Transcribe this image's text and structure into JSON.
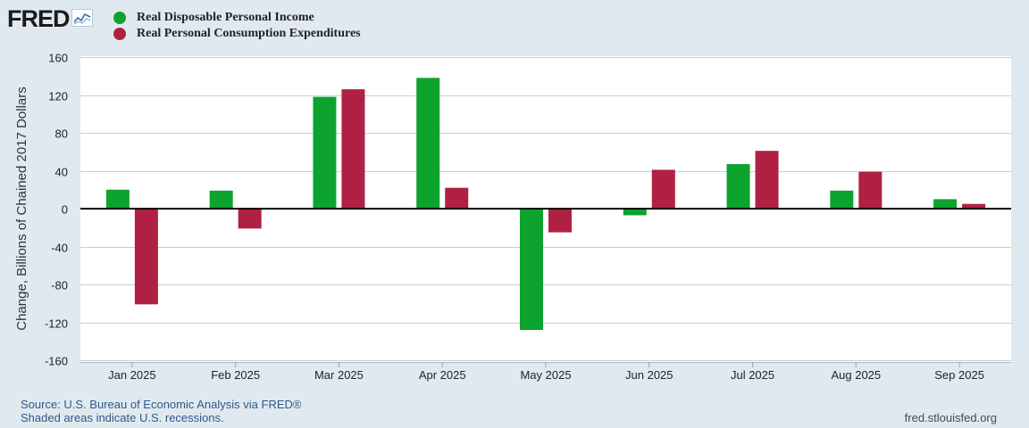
{
  "header": {
    "logo_text": "FRED",
    "logo_icon": "line-graph-icon"
  },
  "legend": {
    "items": [
      {
        "label": "Real Disposable Personal Income",
        "color": "#0ca32e"
      },
      {
        "label": "Real Personal Consumption Expenditures",
        "color": "#b02042"
      }
    ]
  },
  "footer": {
    "source": "Source: U.S. Bureau of Economic Analysis via FRED®",
    "recessions_note": "Shaded areas indicate U.S. recessions.",
    "site": "fred.stlouisfed.org"
  },
  "colors": {
    "background": "#e1e9f0",
    "plot_background": "#ffffff",
    "grid": "#c9ced3",
    "zero_line": "#000000"
  },
  "chart_data": {
    "type": "bar",
    "title": "",
    "xlabel": "",
    "ylabel": "Change, Billions of Chained 2017 Dollars",
    "ylim": [
      -160,
      160
    ],
    "yticks": [
      160,
      120,
      80,
      40,
      0,
      -40,
      -80,
      -120,
      -160
    ],
    "grid": true,
    "legend_position": "top-left",
    "categories": [
      "Jan 2025",
      "Feb 2025",
      "Mar 2025",
      "Apr 2025",
      "May 2025",
      "Jun 2025",
      "Jul 2025",
      "Aug 2025",
      "Sep 2025"
    ],
    "series": [
      {
        "name": "Real Disposable Personal Income",
        "color": "#0ca32e",
        "values": [
          20,
          19,
          118,
          138,
          -128,
          -7,
          47,
          19,
          10
        ]
      },
      {
        "name": "Real Personal Consumption Expenditures",
        "color": "#b02042",
        "values": [
          -101,
          -21,
          126,
          22,
          -25,
          41,
          61,
          39,
          5
        ]
      }
    ]
  }
}
